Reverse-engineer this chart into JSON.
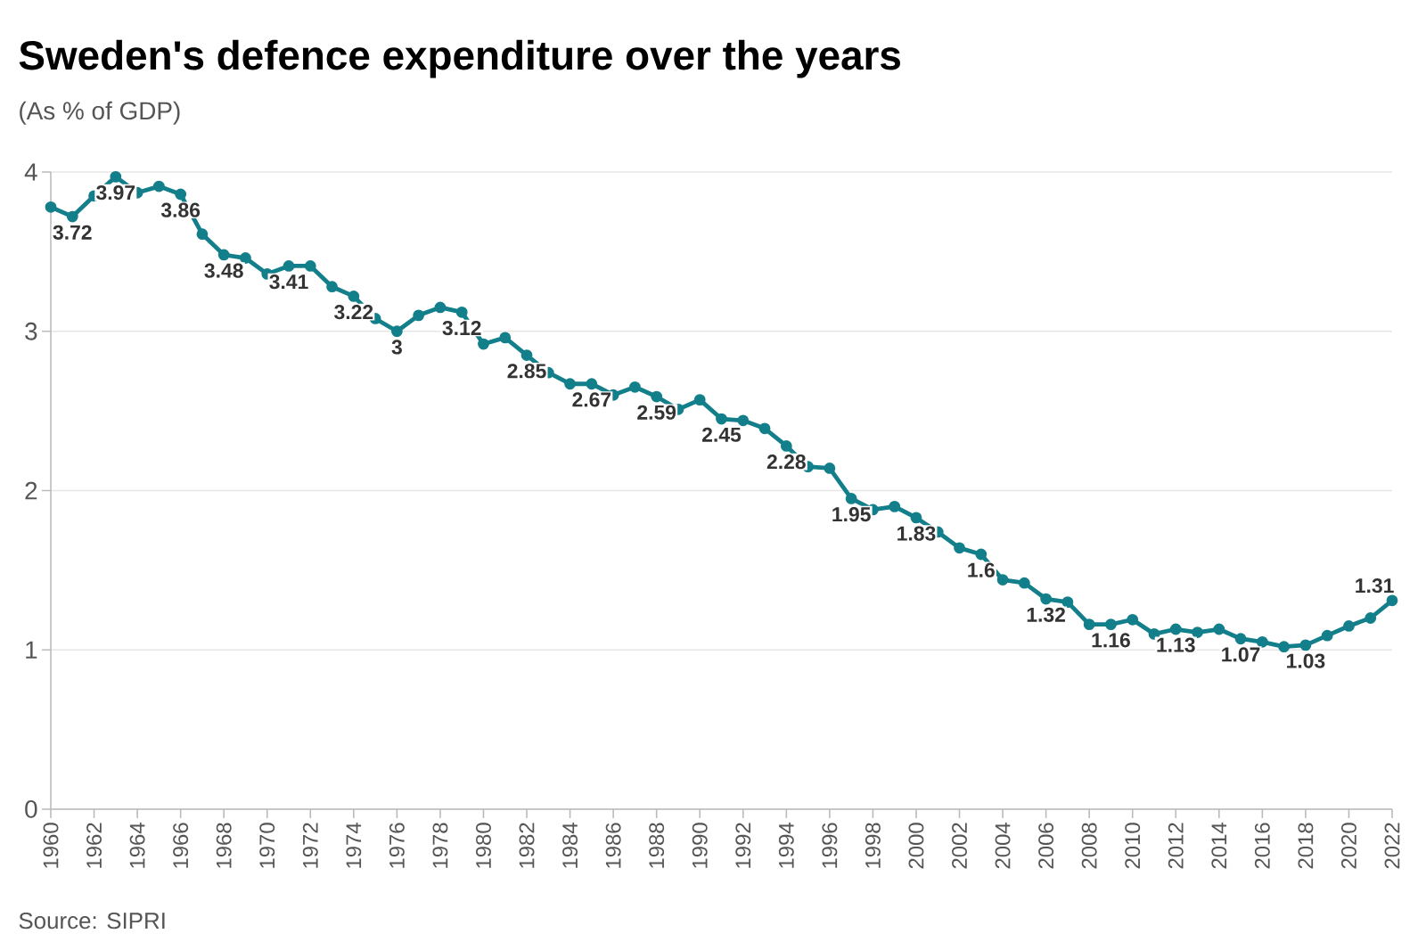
{
  "chart_data": {
    "type": "line",
    "title": "Sweden's defence expenditure over the years",
    "subtitle": "(As % of GDP)",
    "annotations": [
      "Source: SIPRI"
    ],
    "x": [
      1960,
      1961,
      1962,
      1963,
      1964,
      1965,
      1966,
      1967,
      1968,
      1969,
      1970,
      1971,
      1972,
      1973,
      1974,
      1975,
      1976,
      1977,
      1978,
      1979,
      1980,
      1981,
      1982,
      1983,
      1984,
      1985,
      1986,
      1987,
      1988,
      1989,
      1990,
      1991,
      1992,
      1993,
      1994,
      1995,
      1996,
      1997,
      1998,
      1999,
      2000,
      2001,
      2002,
      2003,
      2004,
      2005,
      2006,
      2007,
      2008,
      2009,
      2010,
      2011,
      2012,
      2013,
      2014,
      2015,
      2016,
      2017,
      2018,
      2019,
      2020,
      2021,
      2022
    ],
    "series": [
      {
        "color": "#127f8a",
        "values": [
          3.78,
          3.72,
          3.85,
          3.97,
          3.87,
          3.91,
          3.86,
          3.61,
          3.48,
          3.46,
          3.36,
          3.41,
          3.41,
          3.28,
          3.22,
          3.08,
          3,
          3.1,
          3.15,
          3.12,
          2.92,
          2.96,
          2.85,
          2.74,
          2.67,
          2.67,
          2.6,
          2.65,
          2.59,
          2.51,
          2.57,
          2.45,
          2.44,
          2.39,
          2.28,
          2.15,
          2.14,
          1.95,
          1.88,
          1.9,
          1.83,
          1.74,
          1.64,
          1.6,
          1.44,
          1.42,
          1.32,
          1.3,
          1.16,
          1.16,
          1.19,
          1.1,
          1.13,
          1.11,
          1.13,
          1.07,
          1.05,
          1.02,
          1.03,
          1.09,
          1.15,
          1.2,
          1.31
        ],
        "value_labels": [
          null,
          "3.72",
          null,
          "3.97",
          null,
          null,
          "3.86",
          null,
          "3.48",
          null,
          null,
          "3.41",
          null,
          null,
          "3.22",
          null,
          "3",
          null,
          null,
          "3.12",
          null,
          null,
          "2.85",
          null,
          null,
          "2.67",
          null,
          null,
          "2.59",
          null,
          null,
          "2.45",
          null,
          null,
          "2.28",
          null,
          null,
          "1.95",
          null,
          null,
          "1.83",
          null,
          null,
          "1.6",
          null,
          null,
          "1.32",
          null,
          null,
          "1.16",
          null,
          null,
          "1.13",
          null,
          null,
          "1.07",
          null,
          null,
          "1.03",
          null,
          null,
          null,
          "1.31"
        ]
      }
    ],
    "xlim": [
      1960,
      2022
    ],
    "ylim": [
      0,
      4
    ],
    "xticks": [
      1960,
      1962,
      1964,
      1966,
      1968,
      1970,
      1972,
      1974,
      1976,
      1978,
      1980,
      1982,
      1984,
      1986,
      1988,
      1990,
      1992,
      1994,
      1996,
      1998,
      2000,
      2002,
      2004,
      2006,
      2008,
      2010,
      2012,
      2014,
      2016,
      2018,
      2020,
      2022
    ],
    "yticks": [
      0,
      1,
      2,
      3,
      4
    ],
    "grid": "y",
    "marker": "circle",
    "line_style": "solid"
  }
}
